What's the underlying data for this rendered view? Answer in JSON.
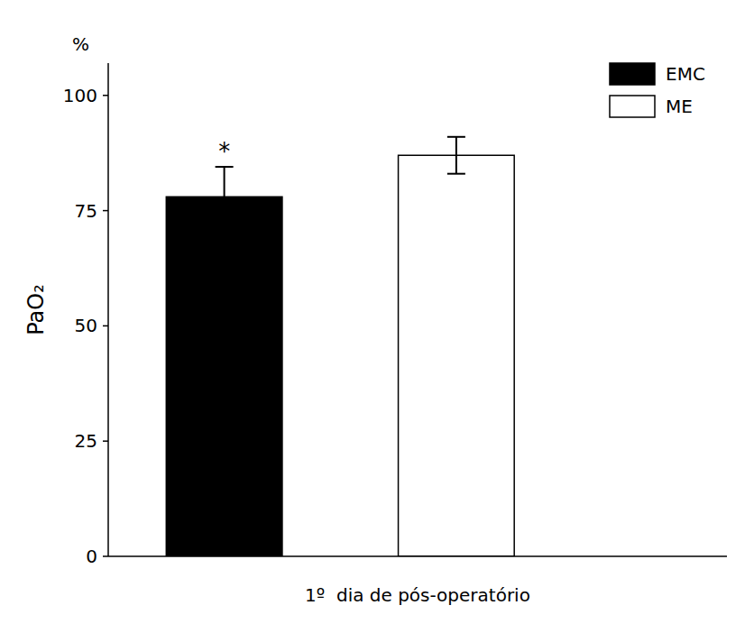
{
  "chart_data": {
    "type": "bar",
    "categories": [
      "EMC",
      "ME"
    ],
    "values": [
      78.0,
      87.0
    ],
    "errors": [
      6.5,
      4.0
    ],
    "colors": [
      "#000000",
      "#ffffff"
    ],
    "ylim": [
      0,
      107
    ],
    "yticks": [
      0,
      25,
      50,
      75,
      100
    ],
    "ylabel": "PaO₂",
    "xlabel": "1º  dia de pós-operatório",
    "annotations": [
      {
        "text": "*",
        "category": "EMC"
      },
      {
        "text": "%"
      }
    ],
    "grid": false,
    "legend": "upper right",
    "tick_labels": "y"
  }
}
